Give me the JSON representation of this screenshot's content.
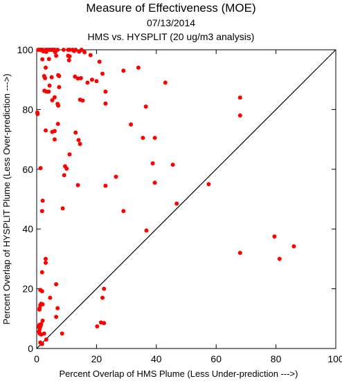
{
  "chart_data": {
    "type": "scatter",
    "title": "Measure of Effectiveness (MOE)",
    "subtitle_date": "07/13/2014",
    "subtitle_analysis": "HMS vs. HYSPLIT  (20 ug/m3 analysis)",
    "xlabel": "Percent Overlap of HMS Plume (Less Under-prediction --->)",
    "ylabel": "Percent Overlap of HYSPLIT Plume (Less Over-prediction --->)",
    "xlim": [
      0,
      100
    ],
    "ylim": [
      0,
      100
    ],
    "xticks": [
      0,
      20,
      40,
      60,
      80,
      100
    ],
    "yticks": [
      0,
      20,
      40,
      60,
      80,
      100
    ],
    "xtick_labels": [
      "0",
      "20",
      "40",
      "60",
      "80",
      "100"
    ],
    "ytick_labels": [
      "0",
      "20",
      "40",
      "60",
      "80",
      "100"
    ],
    "grid": false,
    "diagonal_line": true,
    "point_color": "#ff0000",
    "points": [
      [
        0.5,
        100
      ],
      [
        0.8,
        100
      ],
      [
        1.2,
        100
      ],
      [
        1.5,
        100
      ],
      [
        1.8,
        100
      ],
      [
        2.0,
        100
      ],
      [
        3.0,
        100
      ],
      [
        3.5,
        100
      ],
      [
        4.0,
        100
      ],
      [
        4.5,
        100
      ],
      [
        5.0,
        100
      ],
      [
        5.5,
        100
      ],
      [
        6.0,
        100
      ],
      [
        7.0,
        100
      ],
      [
        9.0,
        100
      ],
      [
        10.5,
        100
      ],
      [
        11.0,
        100
      ],
      [
        12.0,
        100
      ],
      [
        13.0,
        100
      ],
      [
        15.0,
        100
      ],
      [
        2.2,
        99.5
      ],
      [
        3.2,
        99.3
      ],
      [
        6.2,
        99.2
      ],
      [
        12.5,
        99.6
      ],
      [
        14.2,
        99.4
      ],
      [
        16.0,
        99.2
      ],
      [
        6.5,
        98.0
      ],
      [
        10.5,
        98.0
      ],
      [
        11.0,
        97.8
      ],
      [
        18.0,
        98.2
      ],
      [
        1.9,
        96.8
      ],
      [
        4.1,
        96.9
      ],
      [
        10.8,
        96.5
      ],
      [
        21.0,
        96.0
      ],
      [
        3.0,
        94.0
      ],
      [
        2.5,
        91.2
      ],
      [
        5.0,
        90.8
      ],
      [
        7.2,
        91.5
      ],
      [
        12.8,
        91.0
      ],
      [
        22.0,
        92.0
      ],
      [
        29.0,
        93.0
      ],
      [
        34.0,
        94.0
      ],
      [
        2.8,
        90.5
      ],
      [
        7.5,
        91.2
      ],
      [
        13.8,
        90.4
      ],
      [
        14.8,
        90.5
      ],
      [
        18.5,
        90.0
      ],
      [
        20.0,
        89.5
      ],
      [
        17.0,
        89.0
      ],
      [
        43.0,
        89.0
      ],
      [
        4.3,
        88.0
      ],
      [
        2.6,
        86.3
      ],
      [
        3.3,
        86.0
      ],
      [
        7.5,
        87.5
      ],
      [
        4.0,
        86.0
      ],
      [
        23.0,
        86.0
      ],
      [
        6.0,
        84.1
      ],
      [
        5.2,
        83.1
      ],
      [
        14.5,
        83.3
      ],
      [
        15.4,
        83.0
      ],
      [
        23.0,
        82.0
      ],
      [
        7.0,
        81.9
      ],
      [
        7.2,
        81.3
      ],
      [
        68.0,
        84.0
      ],
      [
        36.5,
        81.0
      ],
      [
        0.2,
        79.0
      ],
      [
        0.3,
        78.5
      ],
      [
        68.0,
        78.0
      ],
      [
        7.1,
        75.2
      ],
      [
        31.5,
        75.0
      ],
      [
        3.0,
        73.0
      ],
      [
        6.0,
        72.8
      ],
      [
        13.0,
        72.3
      ],
      [
        5.2,
        72.5
      ],
      [
        35.5,
        70.5
      ],
      [
        39.5,
        70.5
      ],
      [
        6.0,
        70.0
      ],
      [
        14.0,
        69.8
      ],
      [
        14.5,
        68.5
      ],
      [
        11.0,
        65.0
      ],
      [
        38.8,
        62.0
      ],
      [
        45.5,
        61.5
      ],
      [
        9.5,
        61.0
      ],
      [
        10.0,
        60.2
      ],
      [
        1.3,
        60.4
      ],
      [
        9.2,
        58.0
      ],
      [
        26.5,
        57.5
      ],
      [
        57.5,
        55.0
      ],
      [
        39.5,
        55.5
      ],
      [
        13.8,
        54.7
      ],
      [
        23.0,
        54.5
      ],
      [
        2.0,
        49.5
      ],
      [
        46.8,
        48.5
      ],
      [
        8.7,
        46.9
      ],
      [
        1.8,
        46.0
      ],
      [
        29.0,
        46.0
      ],
      [
        36.7,
        39.5
      ],
      [
        79.5,
        37.5
      ],
      [
        86.0,
        34.2
      ],
      [
        68.0,
        32.0
      ],
      [
        81.2,
        30.0
      ],
      [
        3.0,
        30.0
      ],
      [
        3.0,
        28.7
      ],
      [
        1.8,
        25.5
      ],
      [
        6.5,
        21.5
      ],
      [
        22.5,
        20.0
      ],
      [
        1.2,
        19.6
      ],
      [
        1.8,
        19.2
      ],
      [
        22.0,
        17.0
      ],
      [
        4.5,
        17.0
      ],
      [
        1.5,
        15.0
      ],
      [
        1.2,
        14.5
      ],
      [
        2.0,
        14.8
      ],
      [
        1.0,
        13.5
      ],
      [
        7.0,
        13.5
      ],
      [
        0.9,
        13.0
      ],
      [
        6.5,
        10.6
      ],
      [
        2.0,
        9.3
      ],
      [
        21.5,
        8.7
      ],
      [
        22.5,
        8.5
      ],
      [
        1.5,
        8.2
      ],
      [
        0.9,
        7.9
      ],
      [
        1.3,
        7.5
      ],
      [
        20.2,
        7.4
      ],
      [
        0.7,
        7.3
      ],
      [
        1.0,
        6.5
      ],
      [
        0.8,
        5.6
      ],
      [
        1.0,
        5.0
      ],
      [
        2.5,
        5.0
      ],
      [
        8.5,
        5.0
      ],
      [
        1.5,
        4.7
      ],
      [
        3.2,
        3.0
      ],
      [
        1.2,
        2.0
      ],
      [
        1.8,
        1.5
      ]
    ]
  }
}
